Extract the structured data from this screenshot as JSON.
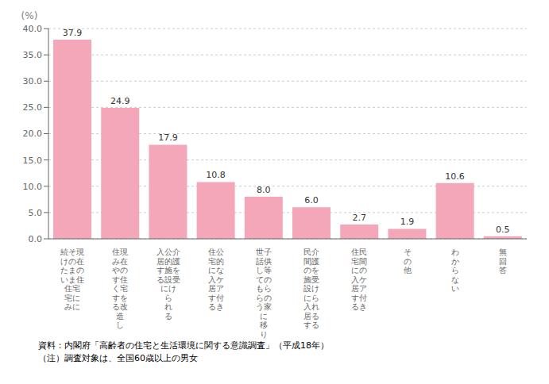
{
  "chart_data": {
    "type": "bar",
    "categories": [
      "続そ現\nけの在\nたまの\nいま住\n住宅\n宅に\nみに",
      "住現\nみ在\nやの\nす住\nく宅\nすを\nる改\n造\nし",
      "入公介\n居的護\nす施を\nる設受\nにけ\nら\nれ\nる",
      "住公\n宅的\nにな\n入ケ\n居ア\nす付\nるき",
      "世子\n話供\nし等\nての\nもら\nらの\nう家\nに\n移\nり",
      "民介\n間護\nのを\n施受\n設け\nにら\n入れ\n居る\nする",
      "住民\n宅間\nにの\n入ケ\n居ア\nす付\nるき",
      "そ\nの\n他",
      "わ\nか\nら\nな\nい",
      "無\n回\n答"
    ],
    "values": [
      37.9,
      24.9,
      17.9,
      10.8,
      8.0,
      6.0,
      2.7,
      1.9,
      10.6,
      0.5
    ],
    "value_labels": [
      "37.9",
      "24.9",
      "17.9",
      "10.8",
      "8.0",
      "6.0",
      "2.7",
      "1.9",
      "10.6",
      "0.5"
    ],
    "data_labels": true,
    "color": "#f4a7b9",
    "y_label": "(%)",
    "ylim": [
      0,
      40.0
    ],
    "yticks": [
      {
        "value": 0,
        "label": "0.0"
      },
      {
        "value": 5,
        "label": "5.0"
      },
      {
        "value": 10,
        "label": "10.0"
      },
      {
        "value": 15,
        "label": "15.0"
      },
      {
        "value": 20,
        "label": "20.0"
      },
      {
        "value": 25,
        "label": "25.0"
      },
      {
        "value": 30,
        "label": "30.0"
      },
      {
        "value": 35,
        "label": "35.0"
      },
      {
        "value": 40,
        "label": "40.0"
      }
    ],
    "grid": true,
    "annotations": [
      "資料：内閣府「高齢者の住宅と生活環境に関する意識調査」（平成18年）",
      "（注）調査対象は、全国60歳以上の男女"
    ]
  }
}
